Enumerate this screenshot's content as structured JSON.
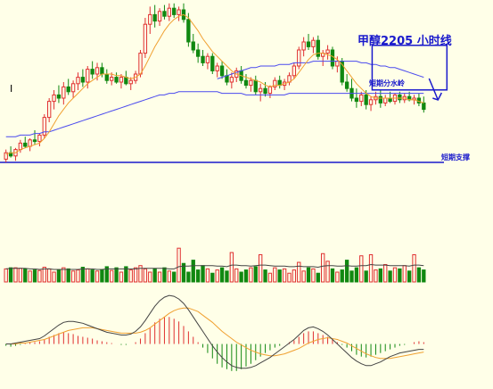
{
  "chart_data": {
    "type": "candlestick",
    "title": "甲醇2205 小时线",
    "annotations": [
      {
        "text": "短期分水岭"
      },
      {
        "text": "短期支撑"
      }
    ],
    "price_axis_label_visible": "I",
    "colors": {
      "background": "#ffffe8",
      "up": "#e03030",
      "down": "#118811",
      "ma_fast": "#f0a030",
      "ma_mid": "#333333",
      "ma_slow": "#4a4aee",
      "support": "#1a1acc",
      "macd_dif": "#444444",
      "macd_dea": "#f0a030"
    },
    "price_panel": {
      "ylim": [
        0,
        100
      ],
      "candles": [
        {
          "o": 2,
          "h": 8,
          "l": 0,
          "c": 6
        },
        {
          "o": 6,
          "h": 10,
          "l": 3,
          "c": 4
        },
        {
          "o": 4,
          "h": 9,
          "l": 1,
          "c": 8
        },
        {
          "o": 8,
          "h": 14,
          "l": 6,
          "c": 12
        },
        {
          "o": 12,
          "h": 16,
          "l": 9,
          "c": 10
        },
        {
          "o": 10,
          "h": 15,
          "l": 7,
          "c": 14
        },
        {
          "o": 14,
          "h": 20,
          "l": 11,
          "c": 13
        },
        {
          "o": 13,
          "h": 18,
          "l": 10,
          "c": 17
        },
        {
          "o": 17,
          "h": 30,
          "l": 15,
          "c": 28
        },
        {
          "o": 28,
          "h": 40,
          "l": 25,
          "c": 38
        },
        {
          "o": 38,
          "h": 45,
          "l": 33,
          "c": 42
        },
        {
          "o": 42,
          "h": 48,
          "l": 37,
          "c": 40
        },
        {
          "o": 40,
          "h": 50,
          "l": 36,
          "c": 47
        },
        {
          "o": 47,
          "h": 52,
          "l": 42,
          "c": 44
        },
        {
          "o": 44,
          "h": 51,
          "l": 40,
          "c": 49
        },
        {
          "o": 49,
          "h": 56,
          "l": 45,
          "c": 53
        },
        {
          "o": 53,
          "h": 58,
          "l": 47,
          "c": 50
        },
        {
          "o": 50,
          "h": 60,
          "l": 46,
          "c": 58
        },
        {
          "o": 58,
          "h": 63,
          "l": 52,
          "c": 55
        },
        {
          "o": 55,
          "h": 62,
          "l": 51,
          "c": 59
        },
        {
          "o": 59,
          "h": 62,
          "l": 53,
          "c": 55
        },
        {
          "o": 55,
          "h": 58,
          "l": 49,
          "c": 51
        },
        {
          "o": 51,
          "h": 56,
          "l": 48,
          "c": 53
        },
        {
          "o": 53,
          "h": 56,
          "l": 49,
          "c": 50
        },
        {
          "o": 50,
          "h": 55,
          "l": 46,
          "c": 53
        },
        {
          "o": 53,
          "h": 57,
          "l": 48,
          "c": 49
        },
        {
          "o": 49,
          "h": 53,
          "l": 45,
          "c": 51
        },
        {
          "o": 51,
          "h": 57,
          "l": 49,
          "c": 55
        },
        {
          "o": 55,
          "h": 70,
          "l": 53,
          "c": 68
        },
        {
          "o": 68,
          "h": 90,
          "l": 65,
          "c": 86
        },
        {
          "o": 86,
          "h": 97,
          "l": 80,
          "c": 92
        },
        {
          "o": 92,
          "h": 98,
          "l": 84,
          "c": 88
        },
        {
          "o": 88,
          "h": 96,
          "l": 85,
          "c": 94
        },
        {
          "o": 94,
          "h": 98,
          "l": 89,
          "c": 91
        },
        {
          "o": 91,
          "h": 99,
          "l": 88,
          "c": 96
        },
        {
          "o": 96,
          "h": 99,
          "l": 90,
          "c": 92
        },
        {
          "o": 92,
          "h": 97,
          "l": 88,
          "c": 95
        },
        {
          "o": 95,
          "h": 99,
          "l": 87,
          "c": 89
        },
        {
          "o": 89,
          "h": 93,
          "l": 72,
          "c": 75
        },
        {
          "o": 75,
          "h": 80,
          "l": 68,
          "c": 70
        },
        {
          "o": 70,
          "h": 74,
          "l": 62,
          "c": 66
        },
        {
          "o": 66,
          "h": 70,
          "l": 60,
          "c": 62
        },
        {
          "o": 62,
          "h": 68,
          "l": 58,
          "c": 66
        },
        {
          "o": 66,
          "h": 68,
          "l": 55,
          "c": 57
        },
        {
          "o": 57,
          "h": 62,
          "l": 53,
          "c": 60
        },
        {
          "o": 60,
          "h": 63,
          "l": 52,
          "c": 54
        },
        {
          "o": 54,
          "h": 58,
          "l": 48,
          "c": 50
        },
        {
          "o": 50,
          "h": 56,
          "l": 46,
          "c": 53
        },
        {
          "o": 53,
          "h": 59,
          "l": 50,
          "c": 57
        },
        {
          "o": 57,
          "h": 60,
          "l": 49,
          "c": 51
        },
        {
          "o": 51,
          "h": 55,
          "l": 46,
          "c": 48
        },
        {
          "o": 48,
          "h": 53,
          "l": 44,
          "c": 51
        },
        {
          "o": 51,
          "h": 54,
          "l": 42,
          "c": 44
        },
        {
          "o": 44,
          "h": 49,
          "l": 38,
          "c": 46
        },
        {
          "o": 46,
          "h": 50,
          "l": 41,
          "c": 43
        },
        {
          "o": 43,
          "h": 48,
          "l": 40,
          "c": 47
        },
        {
          "o": 47,
          "h": 53,
          "l": 45,
          "c": 51
        },
        {
          "o": 51,
          "h": 54,
          "l": 46,
          "c": 48
        },
        {
          "o": 48,
          "h": 52,
          "l": 45,
          "c": 50
        },
        {
          "o": 50,
          "h": 56,
          "l": 48,
          "c": 54
        },
        {
          "o": 54,
          "h": 62,
          "l": 52,
          "c": 60
        },
        {
          "o": 60,
          "h": 72,
          "l": 58,
          "c": 70
        },
        {
          "o": 70,
          "h": 78,
          "l": 66,
          "c": 75
        },
        {
          "o": 75,
          "h": 80,
          "l": 70,
          "c": 72
        },
        {
          "o": 72,
          "h": 78,
          "l": 68,
          "c": 76
        },
        {
          "o": 76,
          "h": 79,
          "l": 64,
          "c": 66
        },
        {
          "o": 66,
          "h": 70,
          "l": 60,
          "c": 68
        },
        {
          "o": 68,
          "h": 73,
          "l": 64,
          "c": 70
        },
        {
          "o": 70,
          "h": 72,
          "l": 58,
          "c": 60
        },
        {
          "o": 60,
          "h": 66,
          "l": 56,
          "c": 63
        },
        {
          "o": 63,
          "h": 65,
          "l": 48,
          "c": 50
        },
        {
          "o": 50,
          "h": 55,
          "l": 44,
          "c": 46
        },
        {
          "o": 46,
          "h": 52,
          "l": 38,
          "c": 40
        },
        {
          "o": 40,
          "h": 46,
          "l": 34,
          "c": 38
        },
        {
          "o": 38,
          "h": 44,
          "l": 35,
          "c": 42
        },
        {
          "o": 42,
          "h": 45,
          "l": 33,
          "c": 36
        },
        {
          "o": 36,
          "h": 41,
          "l": 32,
          "c": 39
        },
        {
          "o": 39,
          "h": 44,
          "l": 36,
          "c": 41
        },
        {
          "o": 41,
          "h": 45,
          "l": 34,
          "c": 37
        },
        {
          "o": 37,
          "h": 42,
          "l": 35,
          "c": 40
        },
        {
          "o": 40,
          "h": 44,
          "l": 37,
          "c": 38
        },
        {
          "o": 38,
          "h": 43,
          "l": 36,
          "c": 42
        },
        {
          "o": 42,
          "h": 44,
          "l": 37,
          "c": 39
        },
        {
          "o": 39,
          "h": 43,
          "l": 37,
          "c": 41
        },
        {
          "o": 41,
          "h": 44,
          "l": 38,
          "c": 39
        },
        {
          "o": 39,
          "h": 42,
          "l": 36,
          "c": 40
        },
        {
          "o": 40,
          "h": 43,
          "l": 35,
          "c": 37
        },
        {
          "o": 37,
          "h": 41,
          "l": 31,
          "c": 33
        }
      ],
      "ma_fast": [
        5,
        6,
        6,
        8,
        9,
        10,
        11,
        12,
        15,
        19,
        24,
        29,
        33,
        37,
        40,
        43,
        46,
        49,
        51,
        53,
        55,
        55,
        55,
        54,
        54,
        53,
        52,
        53,
        55,
        60,
        66,
        72,
        77,
        82,
        86,
        89,
        91,
        92,
        90,
        86,
        82,
        77,
        73,
        69,
        66,
        63,
        60,
        57,
        55,
        54,
        53,
        52,
        51,
        50,
        48,
        47,
        48,
        48,
        49,
        50,
        52,
        56,
        60,
        64,
        67,
        68,
        68,
        67,
        66,
        64,
        61,
        57,
        53,
        49,
        46,
        43,
        41,
        40,
        40,
        40,
        40,
        40,
        40,
        40,
        39,
        39,
        38,
        37
      ],
      "ma_mid": [
        null,
        null,
        null,
        null,
        null,
        null,
        null,
        null,
        null,
        null,
        null,
        null,
        null,
        null,
        null,
        null,
        null,
        null,
        null,
        null,
        null,
        null,
        null,
        null,
        null,
        null,
        null,
        null,
        null,
        null,
        null,
        null,
        null,
        null,
        null,
        null,
        null,
        null,
        null,
        null,
        null,
        null,
        null,
        null,
        null,
        null,
        null,
        null,
        null,
        null,
        null,
        null,
        null,
        null,
        null,
        null,
        null,
        null,
        null,
        null,
        null,
        null,
        null,
        null,
        null,
        null,
        null,
        null,
        null,
        null,
        null,
        null,
        null,
        null,
        null,
        null,
        null,
        null,
        null,
        null,
        null,
        null,
        null,
        null,
        null,
        null,
        null,
        null
      ],
      "ma_slow": [
        16,
        16,
        16,
        17,
        17,
        17,
        18,
        18,
        19,
        19,
        20,
        21,
        22,
        23,
        24,
        25,
        26,
        27,
        28,
        29,
        30,
        31,
        32,
        33,
        34,
        35,
        36,
        37,
        38,
        39,
        40,
        41,
        42,
        42,
        43,
        43,
        44,
        44,
        44,
        44,
        44,
        44,
        44,
        44,
        44,
        43,
        43,
        43,
        43,
        43,
        42,
        42,
        42,
        42,
        42,
        42,
        42,
        42,
        42,
        43,
        43,
        43,
        43,
        43,
        43,
        43,
        43,
        43,
        43,
        43,
        43,
        43,
        43,
        43,
        43,
        43,
        43,
        43,
        43,
        43,
        43,
        43,
        43,
        43,
        43,
        43,
        43,
        43
      ],
      "ma_long": [
        null,
        null,
        null,
        null,
        null,
        null,
        null,
        null,
        null,
        null,
        null,
        null,
        null,
        null,
        null,
        null,
        null,
        null,
        null,
        null,
        null,
        null,
        null,
        null,
        null,
        null,
        null,
        null,
        null,
        null,
        null,
        null,
        null,
        null,
        null,
        null,
        null,
        null,
        null,
        null,
        null,
        null,
        null,
        null,
        52,
        53,
        54,
        55,
        56,
        57,
        58,
        59,
        59,
        60,
        60,
        60,
        60,
        61,
        61,
        61,
        62,
        62,
        62,
        62,
        63,
        63,
        63,
        63,
        63,
        63,
        63,
        63,
        63,
        63,
        62,
        62,
        61,
        61,
        60,
        60,
        59,
        59,
        58,
        57,
        56,
        55,
        54,
        53
      ],
      "support_level": 0,
      "box_range": [
        40,
        44
      ]
    },
    "volume_panel": {
      "ylim": [
        0,
        100
      ],
      "bars": [
        24,
        26,
        26,
        25,
        24,
        20,
        22,
        21,
        27,
        24,
        18,
        22,
        26,
        24,
        20,
        22,
        27,
        24,
        22,
        20,
        22,
        28,
        21,
        26,
        18,
        28,
        22,
        26,
        30,
        24,
        18,
        24,
        18,
        26,
        20,
        18,
        62,
        34,
        18,
        40,
        22,
        30,
        24,
        16,
        22,
        26,
        20,
        54,
        24,
        18,
        22,
        26,
        28,
        50,
        22,
        16,
        26,
        22,
        24,
        16,
        22,
        36,
        20,
        26,
        24,
        16,
        52,
        38,
        24,
        18,
        22,
        40,
        20,
        26,
        48,
        20,
        50,
        22,
        24,
        32,
        20,
        26,
        24,
        30,
        20,
        50,
        26,
        22
      ],
      "ma_line": [
        24,
        25,
        25,
        25,
        25,
        24,
        24,
        23,
        24,
        24,
        23,
        23,
        23,
        23,
        23,
        23,
        24,
        24,
        24,
        23,
        23,
        24,
        24,
        24,
        24,
        24,
        24,
        24,
        25,
        25,
        25,
        25,
        25,
        25,
        24,
        24,
        28,
        29,
        29,
        30,
        30,
        30,
        30,
        30,
        29,
        29,
        28,
        31,
        31,
        30,
        30,
        29,
        30,
        31,
        31,
        30,
        29,
        29,
        29,
        28,
        28,
        29,
        28,
        28,
        28,
        27,
        29,
        30,
        30,
        29,
        29,
        30,
        29,
        29,
        30,
        30,
        32,
        31,
        31,
        31,
        30,
        30,
        30,
        30,
        29,
        31,
        31,
        30
      ]
    },
    "macd_panel": {
      "ylim": [
        -50,
        60
      ],
      "hist": [
        -2,
        -3,
        -2,
        -1,
        1,
        2,
        2,
        3,
        5,
        8,
        10,
        12,
        13,
        12,
        11,
        9,
        8,
        7,
        6,
        4,
        3,
        2,
        1,
        0,
        -1,
        -1,
        0,
        2,
        6,
        12,
        18,
        24,
        28,
        30,
        30,
        28,
        25,
        20,
        14,
        8,
        2,
        -4,
        -10,
        -16,
        -22,
        -26,
        -28,
        -30,
        -30,
        -28,
        -25,
        -22,
        -18,
        -14,
        -10,
        -7,
        -4,
        -2,
        0,
        2,
        4,
        8,
        12,
        14,
        14,
        12,
        10,
        8,
        5,
        2,
        -1,
        -4,
        -8,
        -12,
        -14,
        -15,
        -14,
        -12,
        -10,
        -8,
        -6,
        -4,
        -2,
        -1,
        0,
        2,
        3,
        2
      ],
      "dif": [
        0,
        0,
        1,
        2,
        3,
        4,
        5,
        6,
        9,
        13,
        17,
        21,
        24,
        25,
        25,
        24,
        23,
        21,
        19,
        17,
        15,
        13,
        12,
        11,
        10,
        10,
        11,
        14,
        19,
        26,
        34,
        42,
        48,
        52,
        54,
        53,
        50,
        45,
        38,
        30,
        22,
        14,
        6,
        -2,
        -9,
        -15,
        -20,
        -24,
        -26,
        -27,
        -27,
        -26,
        -24,
        -21,
        -18,
        -15,
        -11,
        -7,
        -3,
        1,
        5,
        10,
        15,
        18,
        19,
        17,
        14,
        10,
        5,
        0,
        -5,
        -10,
        -15,
        -19,
        -22,
        -24,
        -24,
        -22,
        -20,
        -17,
        -14,
        -12,
        -10,
        -9,
        -8,
        -7,
        -6,
        -6
      ],
      "dea": [
        0,
        0,
        0,
        1,
        1,
        2,
        3,
        4,
        5,
        7,
        9,
        11,
        13,
        15,
        16,
        17,
        18,
        18,
        18,
        17,
        16,
        15,
        14,
        13,
        12,
        12,
        12,
        12,
        13,
        15,
        18,
        22,
        26,
        30,
        34,
        37,
        39,
        40,
        40,
        38,
        36,
        32,
        28,
        24,
        19,
        14,
        10,
        6,
        2,
        -1,
        -4,
        -7,
        -9,
        -11,
        -12,
        -13,
        -13,
        -12,
        -11,
        -9,
        -7,
        -5,
        -2,
        1,
        3,
        5,
        6,
        7,
        6,
        5,
        3,
        1,
        -2,
        -5,
        -8,
        -11,
        -13,
        -15,
        -16,
        -16,
        -16,
        -15,
        -14,
        -13,
        -12,
        -11,
        -10,
        -9
      ]
    }
  }
}
